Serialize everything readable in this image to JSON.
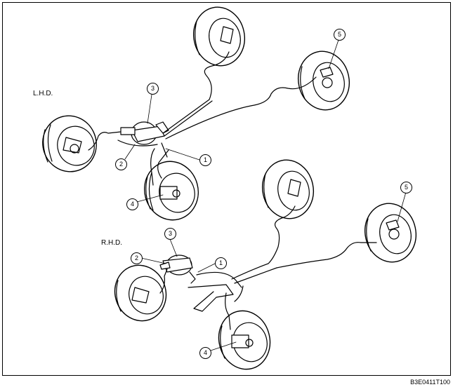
{
  "figure": {
    "lhd_label": "L.H.D.",
    "rhd_label": "R.H.D.",
    "figure_code": "B3E0411T100"
  },
  "callouts": {
    "lhd": [
      "1",
      "2",
      "3",
      "4",
      "5"
    ],
    "rhd": [
      "1",
      "2",
      "3",
      "4",
      "5"
    ]
  },
  "colors": {
    "line": "#000000",
    "background": "#ffffff"
  }
}
